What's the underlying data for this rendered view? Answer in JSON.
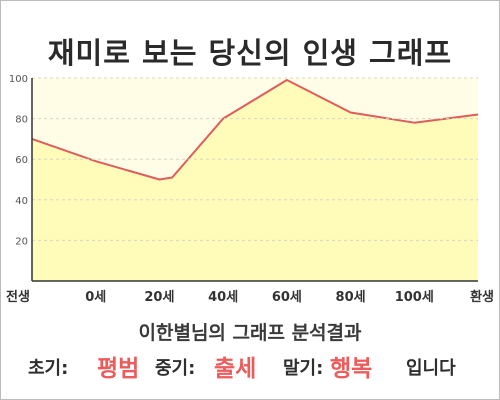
{
  "title": "재미로 보는 당신의 인생 그래프",
  "colors": {
    "area_fill": "#fefcb8",
    "plot_bg": "#fffde6",
    "line": "#e05c5c",
    "highlight_text": "#ee5b5b"
  },
  "chart_data": {
    "type": "area",
    "x_labels": [
      "전생",
      "0세",
      "20세",
      "40세",
      "60세",
      "80세",
      "100세",
      "환생"
    ],
    "x": [
      -20,
      0,
      20,
      24,
      40,
      60,
      80,
      100,
      120
    ],
    "values": [
      70,
      59,
      50,
      51,
      80,
      99,
      83,
      78,
      82
    ],
    "xlim": [
      -20,
      120
    ],
    "ylim": [
      0,
      100
    ],
    "y_ticks": [
      20,
      40,
      60,
      80,
      100
    ],
    "grid": true,
    "grid_axis": "y",
    "xlabel": "",
    "ylabel": ""
  },
  "result": {
    "subtitle": "이한별님의 그래프 분석결과",
    "early_label": "초기:",
    "early_value": "평범",
    "middle_label": "중기:",
    "middle_value": "출세",
    "late_label": "말기:",
    "late_value": "행복",
    "ending": "입니다"
  }
}
